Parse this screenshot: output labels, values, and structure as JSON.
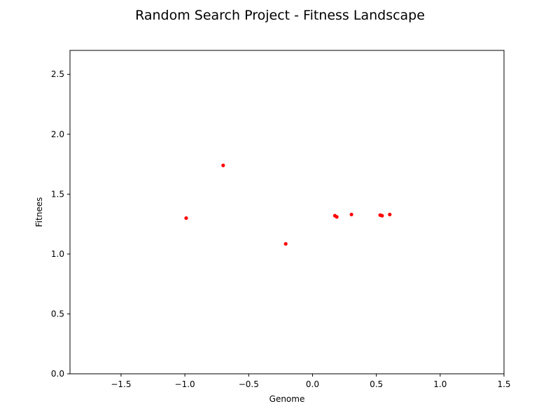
{
  "chart_data": {
    "type": "scatter",
    "title": "Random Search Project - Fitness Landscape",
    "xlabel": "Genome",
    "ylabel": "Fitnees",
    "xlim": [
      -1.9,
      1.5
    ],
    "ylim": [
      0.0,
      2.7
    ],
    "xticks": [
      -1.5,
      -1.0,
      -0.5,
      0.0,
      0.5,
      1.0,
      1.5
    ],
    "yticks": [
      0.0,
      0.5,
      1.0,
      1.5,
      2.0,
      2.5
    ],
    "xtick_labels": [
      "−1.5",
      "−1.0",
      "−0.5",
      "0.0",
      "0.5",
      "1.0",
      "1.5"
    ],
    "ytick_labels": [
      "0.0",
      "0.5",
      "1.0",
      "1.5",
      "2.0",
      "2.5"
    ],
    "grid": false,
    "marker_color": "#ff0000",
    "points": [
      {
        "x": -0.99,
        "y": 1.3
      },
      {
        "x": -0.7,
        "y": 1.74
      },
      {
        "x": -0.21,
        "y": 1.085
      },
      {
        "x": 0.175,
        "y": 1.32
      },
      {
        "x": 0.19,
        "y": 1.31
      },
      {
        "x": 0.305,
        "y": 1.33
      },
      {
        "x": 0.53,
        "y": 1.325
      },
      {
        "x": 0.545,
        "y": 1.32
      },
      {
        "x": 0.605,
        "y": 1.33
      }
    ]
  }
}
